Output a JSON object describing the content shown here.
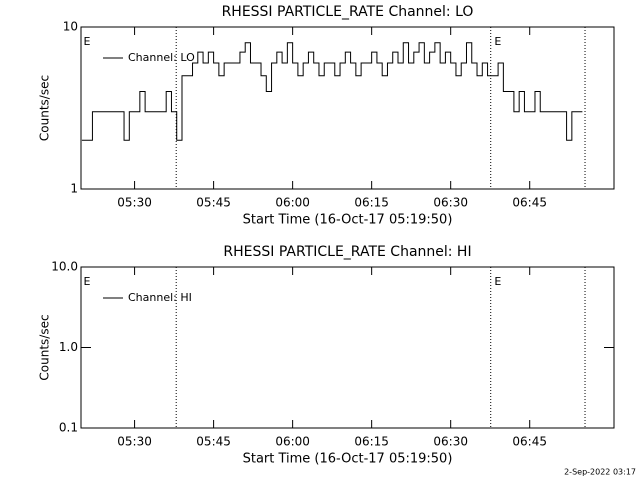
{
  "chart_data": [
    {
      "type": "line",
      "title": "RHESSI PARTICLE_RATE Channel: LO",
      "x_label": "Start Time (16-Oct-17 05:19:50)",
      "y_label": "Counts/sec",
      "log_y": true,
      "color": "#000000",
      "legend": "upper left",
      "xlim": [
        319.83,
        421
      ],
      "xticks": [
        {
          "value": 330,
          "label": "05:30"
        },
        {
          "value": 345,
          "label": "05:45"
        },
        {
          "value": 360,
          "label": "06:00"
        },
        {
          "value": 375,
          "label": "06:15"
        },
        {
          "value": 390,
          "label": "06:30"
        },
        {
          "value": 405,
          "label": "06:45"
        }
      ],
      "ylim": [
        1,
        10
      ],
      "yticks": [
        1,
        10
      ],
      "vlines": [
        337.9,
        397.6,
        415.5
      ],
      "events": [
        {
          "x": 320.3,
          "label": "E"
        },
        {
          "x": 398.3,
          "label": "E"
        }
      ],
      "series": [
        {
          "name": "Channel: LO",
          "color": "#000000",
          "x": [
            320,
            321,
            322,
            323,
            324,
            325,
            326,
            327,
            328,
            329,
            330,
            331,
            332,
            333,
            334,
            335,
            336,
            337,
            338,
            339,
            340,
            341,
            342,
            343,
            344,
            345,
            346,
            347,
            348,
            349,
            350,
            351,
            352,
            353,
            354,
            355,
            356,
            357,
            358,
            359,
            360,
            361,
            362,
            363,
            364,
            365,
            366,
            367,
            368,
            369,
            370,
            371,
            372,
            373,
            374,
            375,
            376,
            377,
            378,
            379,
            380,
            381,
            382,
            383,
            384,
            385,
            386,
            387,
            388,
            389,
            390,
            391,
            392,
            393,
            394,
            395,
            396,
            397,
            398,
            399,
            400,
            401,
            402,
            403,
            404,
            405,
            406,
            407,
            408,
            409,
            410,
            411,
            412,
            413,
            414,
            415
          ],
          "values": [
            2,
            2,
            3,
            3,
            3,
            3,
            3,
            3,
            2,
            3,
            3,
            4,
            3,
            3,
            3,
            3,
            4,
            3,
            2,
            5,
            5,
            6,
            7,
            6,
            7,
            6,
            5,
            6,
            6,
            6,
            7,
            8,
            6,
            6,
            5,
            4,
            6,
            7,
            6,
            8,
            6,
            5,
            6,
            7,
            6,
            5,
            6,
            6,
            5,
            6,
            7,
            6,
            5,
            6,
            6,
            7,
            6,
            5,
            6,
            7,
            6,
            8,
            6,
            7,
            8,
            6,
            7,
            8,
            6,
            7,
            6,
            5,
            6,
            8,
            6,
            5,
            6,
            5,
            5,
            6,
            4,
            4,
            3,
            4,
            3,
            3,
            4,
            3,
            3,
            3,
            3,
            3,
            2,
            3,
            3,
            3
          ]
        }
      ]
    },
    {
      "type": "line",
      "title": "RHESSI PARTICLE_RATE Channel: HI",
      "x_label": "Start Time (16-Oct-17 05:19:50)",
      "y_label": "Counts/sec",
      "log_y": true,
      "color": "#000000",
      "legend": "upper left",
      "xlim": [
        319.83,
        421
      ],
      "xticks": [
        {
          "value": 330,
          "label": "05:30"
        },
        {
          "value": 345,
          "label": "05:45"
        },
        {
          "value": 360,
          "label": "06:00"
        },
        {
          "value": 375,
          "label": "06:15"
        },
        {
          "value": 390,
          "label": "06:30"
        },
        {
          "value": 405,
          "label": "06:45"
        }
      ],
      "ylim": [
        0.1,
        10
      ],
      "yticks": [
        {
          "value": 0.1,
          "label": "0.1"
        },
        {
          "value": 1,
          "label": "1.0"
        },
        {
          "value": 10,
          "label": "10.0"
        }
      ],
      "vlines": [
        337.9,
        397.6,
        415.5
      ],
      "events": [
        {
          "x": 320.3,
          "label": "E"
        },
        {
          "x": 398.3,
          "label": "E"
        }
      ],
      "series": [
        {
          "name": "Channel: HI",
          "color": "#000000",
          "x": [],
          "values": []
        }
      ]
    }
  ],
  "footer": "2-Sep-2022 03:17"
}
